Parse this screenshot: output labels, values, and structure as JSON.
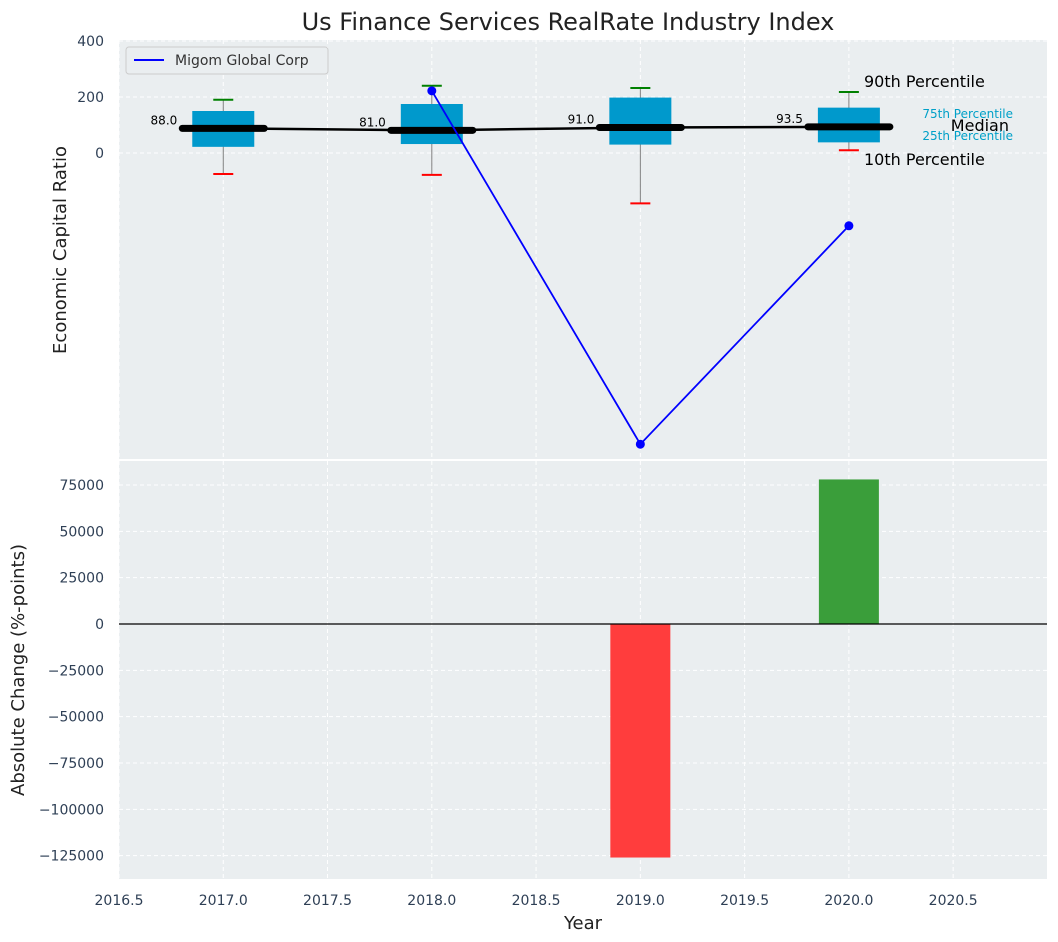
{
  "chart_data": [
    {
      "type": "box",
      "title": "Us Finance Services RealRate Industry Index",
      "ylabel": "Economic Capital Ratio",
      "ylim_top": 400,
      "yticks": [
        400,
        200,
        0
      ],
      "ytick_labels": [
        "400",
        "200",
        "0"
      ],
      "boxes": [
        {
          "year": 2017,
          "p10": -75,
          "p25": 22,
          "median": 88,
          "p75": 150,
          "p90": 190,
          "median_label": "88.0"
        },
        {
          "year": 2018,
          "p10": -78,
          "p25": 32,
          "median": 81,
          "p75": 175,
          "p90": 240,
          "median_label": "81.0"
        },
        {
          "year": 2019,
          "p10": -180,
          "p25": 30,
          "median": 91,
          "p75": 198,
          "p90": 232,
          "median_label": "91.0"
        },
        {
          "year": 2020,
          "p10": 10,
          "p25": 38,
          "median": 93.5,
          "p75": 162,
          "p90": 218,
          "median_label": "93.5"
        }
      ],
      "company_series": {
        "name": "Migom Global Corp",
        "color": "#0000ff",
        "x": [
          2018,
          2019,
          2020
        ],
        "y": [
          222,
          -1040,
          -260
        ]
      },
      "legend": {
        "label": "Migom Global Corp",
        "position": "top-left"
      },
      "percentile_key": {
        "p90": "90th Percentile",
        "p75": "75th Percentile",
        "median": "Median",
        "p25": "25th Percentile",
        "p10": "10th Percentile"
      },
      "colors": {
        "box": "#0099cc",
        "median_line": "#000000",
        "p90_cap": "#008000",
        "p10_cap": "#ff0000",
        "key_text": "#00a0c8"
      }
    },
    {
      "type": "bar",
      "ylabel": "Absolute Change (%-points)",
      "xlabel": "Year",
      "categories": [
        2019,
        2020
      ],
      "values": [
        -126000,
        78000
      ],
      "ylim": [
        -135000,
        88000
      ],
      "yticks": [
        75000,
        50000,
        25000,
        0,
        -25000,
        -50000,
        -75000,
        -100000,
        -125000
      ],
      "ytick_labels": [
        "75000",
        "50000",
        "25000",
        "0",
        "−25000",
        "−50000",
        "−75000",
        "−100000",
        "−125000"
      ],
      "xlim": [
        2016.5,
        2020.95
      ],
      "xticks": [
        2016.5,
        2017.0,
        2017.5,
        2018.0,
        2018.5,
        2019.0,
        2019.5,
        2020.0,
        2020.5
      ],
      "xtick_labels": [
        "2016.5",
        "2017.0",
        "2017.5",
        "2018.0",
        "2018.5",
        "2019.0",
        "2019.5",
        "2020.0",
        "2020.5"
      ],
      "colors": {
        "positive": "#3a9e3a",
        "negative": "#ff3d3d"
      }
    }
  ]
}
